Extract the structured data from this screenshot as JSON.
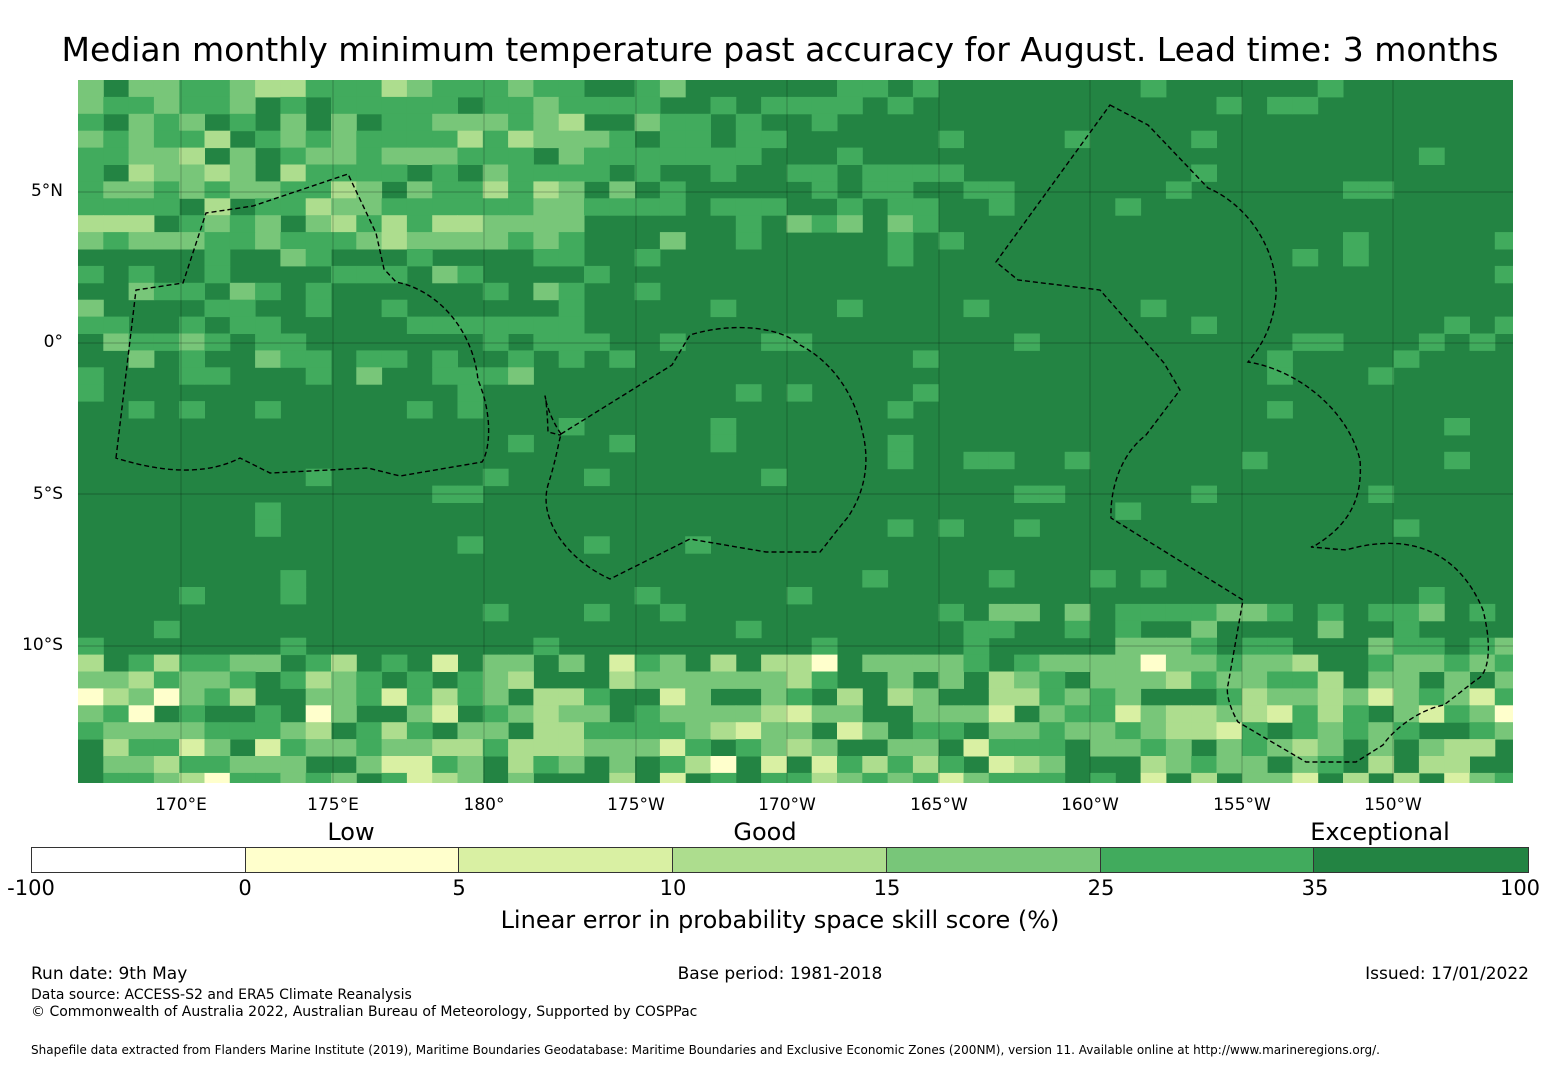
{
  "title": "Median monthly minimum temperature past accuracy for August. Lead time: 3 months",
  "map": {
    "lat_labels": [
      "5°N",
      "0°",
      "5°S",
      "10°S"
    ],
    "lon_labels": [
      "170°E",
      "175°E",
      "180°",
      "175°W",
      "170°W",
      "165°W",
      "160°W",
      "155°W",
      "150°W"
    ],
    "extent": {
      "lon_west": 166.6,
      "lon_east": 213.8,
      "lat_north": 8.6,
      "lat_south": -14.5
    },
    "base_color": "#238443",
    "grid_on": true
  },
  "legend": {
    "category_labels": [
      "Low",
      "Good",
      "Exceptional"
    ],
    "colorbar_title": "Linear error in probability space skill score (%)",
    "tick_labels": [
      "-100",
      "0",
      "5",
      "10",
      "15",
      "25",
      "35",
      "100"
    ],
    "colors": [
      "#ffffff",
      "#ffffcc",
      "#d9f0a3",
      "#addd8e",
      "#78c679",
      "#41ab5d",
      "#238443"
    ]
  },
  "footer": {
    "run_date": "Run date: 9th May",
    "base_period": "Base period: 1981-2018",
    "issued": "Issued: 17/01/2022",
    "data_source": "Data source: ACCESS-S2 and ERA5 Climate Reanalysis",
    "copyright": "© Commonwealth of Australia 2022, Australian Bureau of Meteorology, Supported by COSPPac",
    "shapefile": "Shapefile data extracted from Flanders Marine Institute (2019), Maritime Boundaries Geodatabase: Maritime Boundaries and Exclusive Economic Zones (200NM), version 11. Available online at http://www.marineregions.org/."
  }
}
